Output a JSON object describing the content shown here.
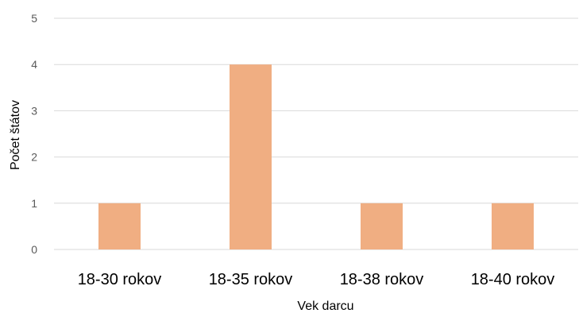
{
  "chart_data": {
    "type": "bar",
    "categories": [
      "18-30 rokov",
      "18-35 rokov",
      "18-38 rokov",
      "18-40 rokov"
    ],
    "values": [
      1,
      4,
      1,
      1
    ],
    "title": "",
    "xlabel": "Vek darcu",
    "ylabel": "Počet štátov",
    "ylim": [
      0,
      5
    ],
    "yticks": [
      0,
      1,
      2,
      3,
      4,
      5
    ],
    "grid": true,
    "legend": "none",
    "colors": {
      "bar": "#F0AE82",
      "grid": "#D9D9D9",
      "text": "#000000",
      "tick_text": "#595959"
    }
  }
}
